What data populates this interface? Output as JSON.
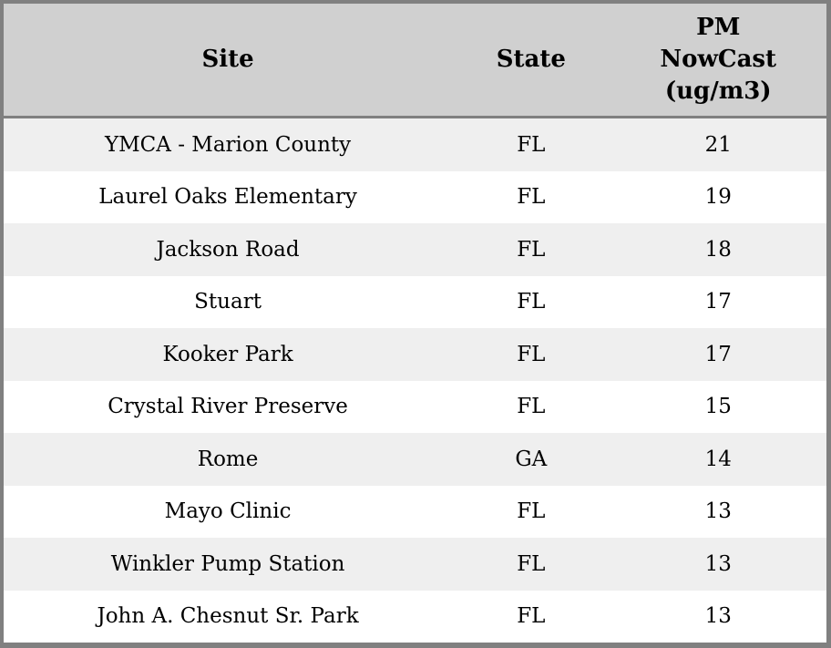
{
  "chart_data": {
    "type": "table",
    "title": "",
    "columns": [
      "Site",
      "State",
      "PM NowCast (ug/m3)"
    ],
    "rows": [
      {
        "site": "YMCA - Marion County",
        "state": "FL",
        "pm_nowcast": "21"
      },
      {
        "site": "Laurel Oaks Elementary",
        "state": "FL",
        "pm_nowcast": "19"
      },
      {
        "site": "Jackson Road",
        "state": "FL",
        "pm_nowcast": "18"
      },
      {
        "site": "Stuart",
        "state": "FL",
        "pm_nowcast": "17"
      },
      {
        "site": "Kooker Park",
        "state": "FL",
        "pm_nowcast": "17"
      },
      {
        "site": "Crystal River Preserve",
        "state": "FL",
        "pm_nowcast": "15"
      },
      {
        "site": "Rome",
        "state": "GA",
        "pm_nowcast": "14"
      },
      {
        "site": "Mayo Clinic",
        "state": "FL",
        "pm_nowcast": "13"
      },
      {
        "site": "Winkler Pump Station",
        "state": "FL",
        "pm_nowcast": "13"
      },
      {
        "site": "John A. Chesnut Sr. Park",
        "state": "FL",
        "pm_nowcast": "13"
      }
    ],
    "layout": {
      "striped": true,
      "grid": "off",
      "alignment": "center"
    }
  },
  "colors": {
    "header_bg": "#d0d0d0",
    "stripe_row_bg": "#efefef",
    "plain_row_bg": "#ffffff",
    "border": "#808080",
    "text": "#000000"
  }
}
